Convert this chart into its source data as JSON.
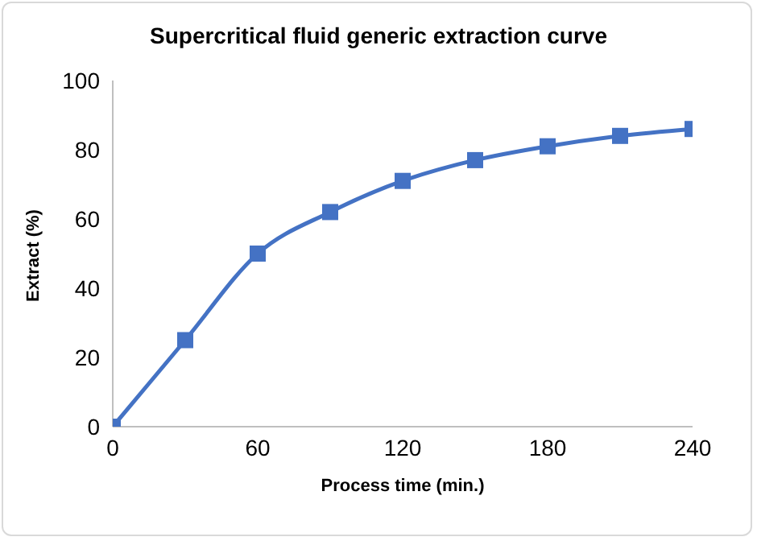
{
  "chart_data": {
    "type": "line",
    "title": "Supercritical fluid generic extraction curve",
    "xlabel": "Process time (min.)",
    "ylabel": "Extract (%)",
    "x": [
      0,
      30,
      60,
      90,
      120,
      150,
      180,
      210,
      240
    ],
    "series": [
      {
        "color": "#4472c4",
        "values": [
          0,
          25,
          50,
          62,
          71,
          77,
          81,
          84,
          86
        ]
      }
    ],
    "xlim": [
      0,
      240
    ],
    "xticks": [
      0,
      60,
      120,
      180,
      240
    ],
    "ylim": [
      0,
      100
    ],
    "yticks": [
      0,
      20,
      40,
      60,
      80,
      100
    ],
    "grid": false,
    "legend": false,
    "marker": "square",
    "line_style": "solid"
  }
}
